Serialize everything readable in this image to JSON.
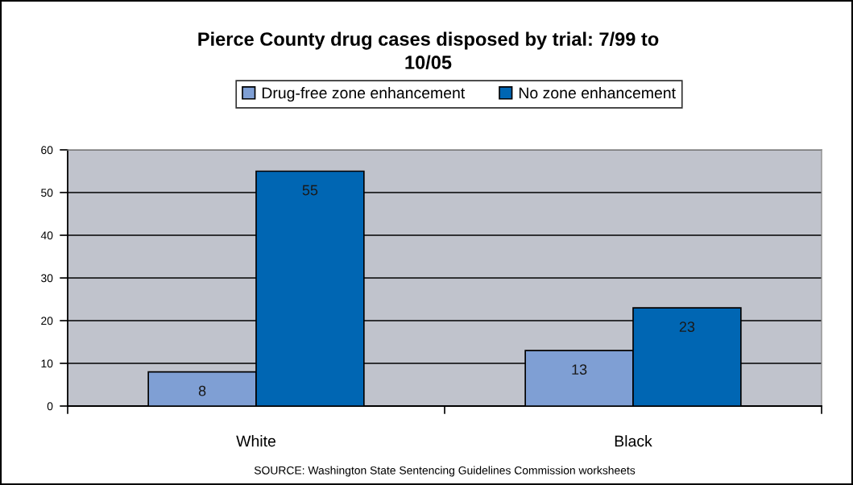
{
  "chart_data": {
    "type": "bar",
    "title": "Pierce County drug cases disposed by trial: 7/99 to 10/05",
    "categories": [
      "White",
      "Black"
    ],
    "series": [
      {
        "name": "Drug-free zone enhancement",
        "color": "#7f9fd4",
        "values": [
          8,
          13
        ]
      },
      {
        "name": "No zone enhancement",
        "color": "#0066b3",
        "values": [
          55,
          23
        ]
      }
    ],
    "ylim": [
      0,
      60
    ],
    "yticks": [
      0,
      10,
      20,
      30,
      40,
      50,
      60
    ],
    "grid": "y",
    "legend": "top",
    "data_labels": true,
    "annotations": [
      "SOURCE: Washington State Sentencing Guidelines Commission worksheets"
    ]
  }
}
